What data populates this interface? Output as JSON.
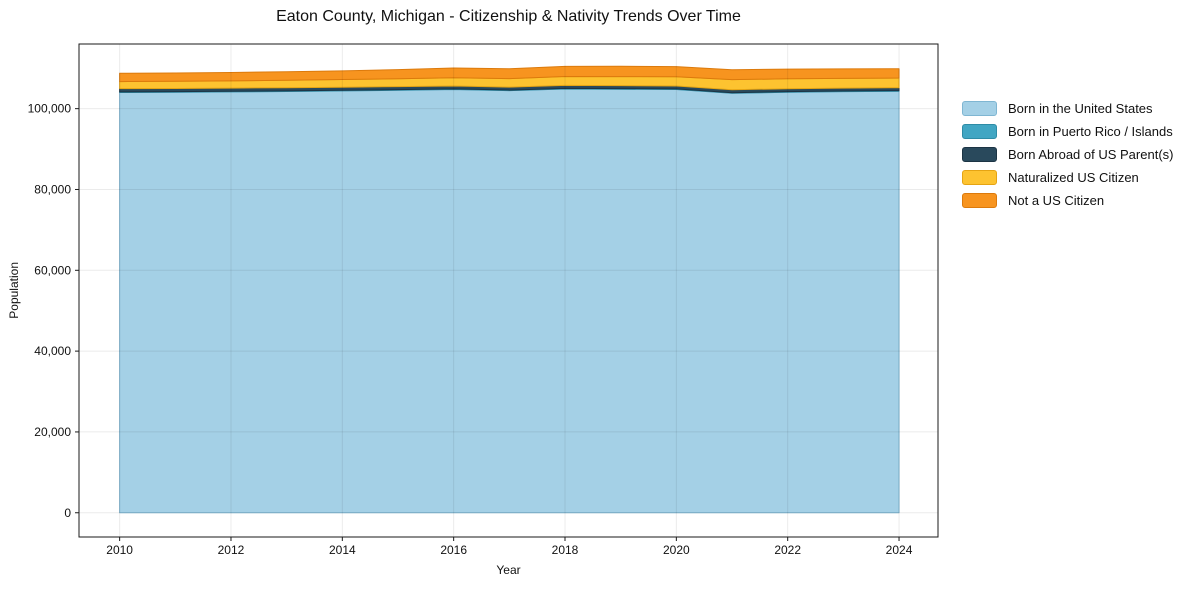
{
  "chart_data": {
    "type": "area",
    "stacked": true,
    "title": "Eaton County, Michigan - Citizenship & Nativity Trends Over Time",
    "xlabel": "Year",
    "ylabel": "Population",
    "legend_position": "right-outside",
    "grid": true,
    "background": "#ffffff",
    "spine_color": "#1a1a1a",
    "grid_color": "rgba(0,0,0,0.08)",
    "xlim": [
      2009.27,
      2024.7
    ],
    "ylim": [
      -6000,
      116000
    ],
    "years": [
      2010,
      2011,
      2012,
      2013,
      2014,
      2015,
      2016,
      2017,
      2018,
      2019,
      2020,
      2021,
      2022,
      2023,
      2024
    ],
    "x_ticks": [
      {
        "value": 2010,
        "label": "2010"
      },
      {
        "value": 2012,
        "label": "2012"
      },
      {
        "value": 2014,
        "label": "2014"
      },
      {
        "value": 2016,
        "label": "2016"
      },
      {
        "value": 2018,
        "label": "2018"
      },
      {
        "value": 2020,
        "label": "2020"
      },
      {
        "value": 2022,
        "label": "2022"
      },
      {
        "value": 2024,
        "label": "2024"
      }
    ],
    "y_ticks": [
      {
        "value": 0,
        "label": "0"
      },
      {
        "value": 20000,
        "label": "20,000"
      },
      {
        "value": 40000,
        "label": "40,000"
      },
      {
        "value": 60000,
        "label": "60,000"
      },
      {
        "value": 80000,
        "label": "80,000"
      },
      {
        "value": 100000,
        "label": "100,000"
      }
    ],
    "series": [
      {
        "name": "Born in the United States",
        "color": "#A4D0E6",
        "edge": "#7FB6D2",
        "values": [
          104000,
          104050,
          104150,
          104250,
          104400,
          104550,
          104750,
          104450,
          104850,
          104800,
          104750,
          103800,
          104050,
          104200,
          104300
        ]
      },
      {
        "name": "Born in Puerto Rico / Islands",
        "color": "#41A6C3",
        "edge": "#2E8CA6",
        "values": [
          150,
          150,
          160,
          150,
          140,
          150,
          160,
          150,
          160,
          170,
          160,
          150,
          160,
          160,
          170
        ]
      },
      {
        "name": "Born Abroad of US Parent(s)",
        "color": "#29495C",
        "edge": "#1C3444",
        "values": [
          800,
          790,
          780,
          780,
          770,
          760,
          700,
          720,
          740,
          720,
          700,
          720,
          730,
          720,
          710
        ]
      },
      {
        "name": "Naturalized US Citizen",
        "color": "#FDC330",
        "edge": "#E5A413",
        "values": [
          1750,
          1780,
          1800,
          1850,
          1900,
          1950,
          2050,
          2100,
          2200,
          2250,
          2300,
          2500,
          2450,
          2400,
          2400
        ]
      },
      {
        "name": "Not a US Citizen",
        "color": "#F7941F",
        "edge": "#DC7A0C",
        "values": [
          2050,
          2060,
          2070,
          2100,
          2150,
          2250,
          2400,
          2450,
          2500,
          2550,
          2500,
          2450,
          2400,
          2350,
          2300
        ]
      }
    ]
  }
}
